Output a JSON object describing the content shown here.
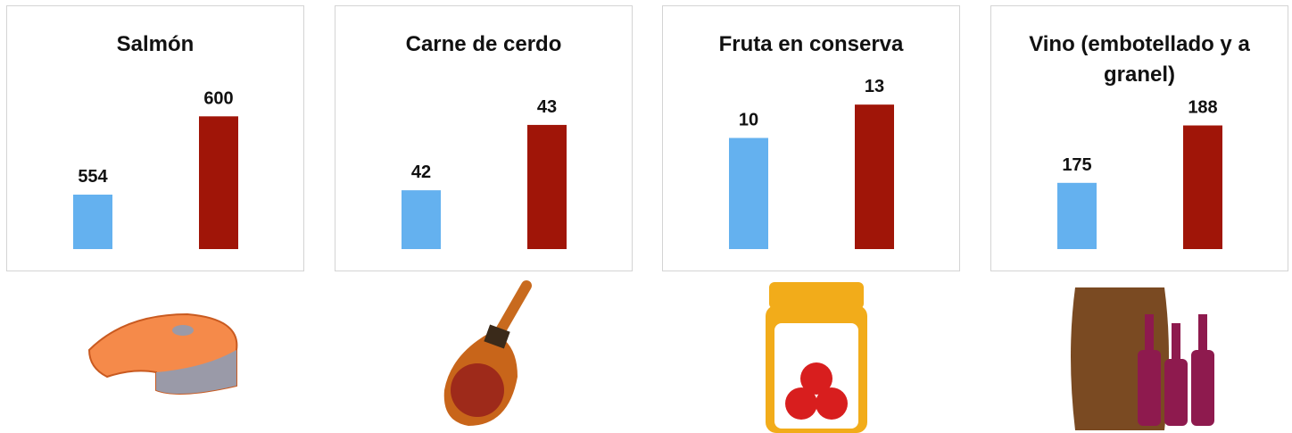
{
  "chart_data": [
    {
      "type": "bar",
      "title": "Salmón",
      "values": [
        554,
        600
      ],
      "colors": [
        "#64b1ef",
        "#a01508"
      ],
      "ylim": [
        522,
        618
      ]
    },
    {
      "type": "bar",
      "title": "Carne de cerdo",
      "values": [
        42,
        43
      ],
      "colors": [
        "#64b1ef",
        "#a01508"
      ],
      "ylim": [
        41.1,
        43.6
      ]
    },
    {
      "type": "bar",
      "title": "Fruta en conserva",
      "values": [
        10,
        13
      ],
      "colors": [
        "#64b1ef",
        "#a01508"
      ],
      "ylim": [
        0,
        14.7
      ]
    },
    {
      "type": "bar",
      "title": "Vino (embotellado y a granel)",
      "values": [
        175,
        188
      ],
      "colors": [
        "#64b1ef",
        "#a01508"
      ],
      "ylim": [
        160,
        197
      ]
    }
  ]
}
